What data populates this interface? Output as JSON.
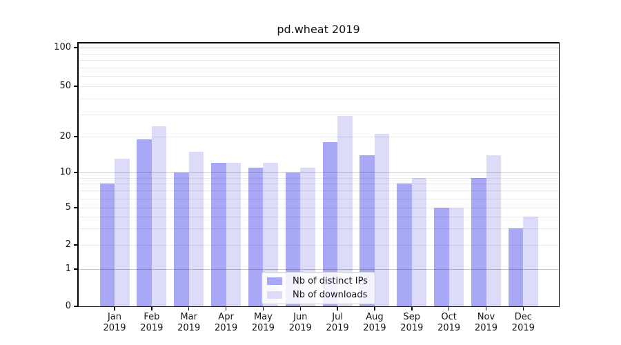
{
  "chart_data": {
    "type": "bar",
    "title": "pd.wheat 2019",
    "categories": [
      "Jan 2019",
      "Feb 2019",
      "Mar 2019",
      "Apr 2019",
      "May 2019",
      "Jun 2019",
      "Jul 2019",
      "Aug 2019",
      "Sep 2019",
      "Oct 2019",
      "Nov 2019",
      "Dec 2019"
    ],
    "series": [
      {
        "name": "Nb of distinct IPs",
        "color": "#a8a8f6",
        "values": [
          8,
          19,
          10,
          12,
          11,
          10,
          18,
          14,
          8,
          5,
          9,
          3
        ]
      },
      {
        "name": "Nb of downloads",
        "color": "#dcdcf9",
        "values": [
          13,
          24,
          15,
          12,
          12,
          11,
          29,
          21,
          9,
          5,
          14,
          4
        ]
      }
    ],
    "xlabel": "",
    "ylabel": "",
    "yscale": "asinh (log above 1, linear 0-1)",
    "ylim": [
      0,
      120
    ],
    "y_tick_labels": [
      "0",
      "1",
      "2",
      "5",
      "10",
      "20",
      "50",
      "100"
    ],
    "grid_major": [
      1,
      10,
      100
    ],
    "grid_minor": [
      2,
      3,
      4,
      5,
      6,
      7,
      8,
      9,
      20,
      30,
      40,
      50,
      60,
      70,
      80,
      90
    ],
    "grid": "horizontal, drawn over bars",
    "legend_position": "inside axes, lower center-right"
  }
}
